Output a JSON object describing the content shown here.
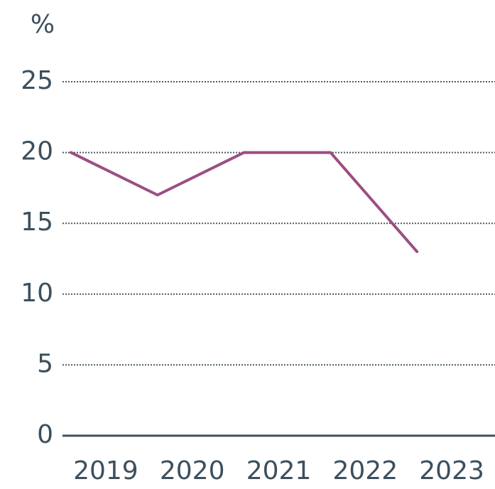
{
  "chart_data": {
    "type": "line",
    "title": "%",
    "categories": [
      "2019",
      "2020",
      "2021",
      "2022",
      "2023"
    ],
    "series": [
      {
        "name": "",
        "color": "#9b4f82",
        "values": [
          20,
          17,
          20,
          20,
          13
        ]
      }
    ],
    "ylim": [
      0,
      25
    ],
    "yticks": [
      0,
      5,
      10,
      15,
      20,
      25
    ],
    "grid": true
  }
}
